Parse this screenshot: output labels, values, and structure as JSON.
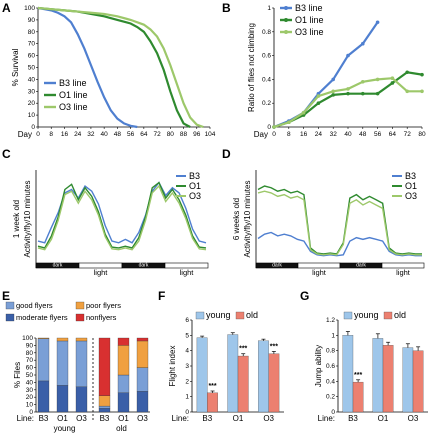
{
  "colors": {
    "B3": "#4f7fd0",
    "O1": "#2f8a2f",
    "O3": "#9dc86a",
    "good": "#7a9fd6",
    "moderate": "#3a5fa8",
    "poor": "#f0a040",
    "non": "#d83030",
    "young": "#9ec6ea",
    "old": "#ec8070"
  },
  "chart_data": [
    {
      "panel": "A",
      "type": "line",
      "ylabel": "% Survival",
      "xlabel": "Day",
      "ylim": [
        0,
        100
      ],
      "yticks": [
        0,
        10,
        20,
        30,
        40,
        50,
        60,
        70,
        80,
        90,
        100
      ],
      "xticks": [
        0,
        8,
        16,
        24,
        32,
        40,
        48,
        56,
        64,
        72,
        80,
        88,
        96,
        104
      ],
      "xlim": [
        0,
        104
      ],
      "legend": "bottom-left",
      "series": [
        {
          "name": "B3 line",
          "color_key": "B3",
          "x": [
            0,
            4,
            8,
            12,
            16,
            20,
            24,
            28,
            32,
            36,
            40,
            44,
            48,
            52,
            56,
            60
          ],
          "y": [
            100,
            99,
            98,
            96,
            93,
            88,
            78,
            66,
            52,
            38,
            25,
            14,
            7,
            3,
            1,
            0
          ]
        },
        {
          "name": "O1 line",
          "color_key": "O1",
          "x": [
            0,
            8,
            16,
            24,
            32,
            40,
            48,
            56,
            60,
            64,
            68,
            72,
            76,
            80,
            84,
            88,
            92
          ],
          "y": [
            100,
            99,
            98,
            97,
            95,
            93,
            90,
            87,
            84,
            80,
            72,
            62,
            48,
            30,
            14,
            3,
            0
          ]
        },
        {
          "name": "O3 line",
          "color_key": "O3",
          "x": [
            0,
            8,
            16,
            24,
            32,
            40,
            48,
            56,
            64,
            68,
            72,
            76,
            80,
            84,
            88,
            92,
            96,
            100
          ],
          "y": [
            100,
            99,
            98,
            97,
            96,
            95,
            93,
            90,
            86,
            82,
            76,
            66,
            52,
            36,
            20,
            8,
            2,
            0
          ]
        }
      ]
    },
    {
      "panel": "B",
      "type": "line",
      "ylabel": "Ratio of flies not climbing",
      "xlabel": "Day",
      "ylim": [
        0,
        1
      ],
      "yticks": [
        0,
        0.2,
        0.4,
        0.6,
        0.8,
        1
      ],
      "xticks": [
        0,
        8,
        16,
        24,
        32,
        40,
        48,
        56,
        64,
        72,
        80
      ],
      "legend": "top-left",
      "series": [
        {
          "name": "B3 line",
          "color_key": "B3",
          "x": [
            0,
            8,
            16,
            24,
            32,
            40,
            48,
            56
          ],
          "y": [
            0,
            0.05,
            0.12,
            0.28,
            0.4,
            0.6,
            0.7,
            0.88
          ]
        },
        {
          "name": "O1 line",
          "color_key": "O1",
          "x": [
            0,
            8,
            16,
            24,
            32,
            40,
            48,
            56,
            64,
            72,
            80
          ],
          "y": [
            0,
            0.04,
            0.1,
            0.2,
            0.27,
            0.28,
            0.28,
            0.28,
            0.37,
            0.46,
            0.44
          ]
        },
        {
          "name": "O3 line",
          "color_key": "O3",
          "x": [
            0,
            8,
            16,
            24,
            32,
            40,
            48,
            56,
            64,
            72,
            80
          ],
          "y": [
            0,
            0.04,
            0.12,
            0.26,
            0.3,
            0.32,
            0.38,
            0.4,
            0.41,
            0.3,
            0.3
          ]
        }
      ]
    },
    {
      "panel": "C",
      "type": "line",
      "ylabel": "Activity/fly/10 minutes",
      "side_label": "1 week old",
      "phases": [
        "dark",
        "light",
        "dark",
        "light"
      ],
      "legend": "top-right",
      "series": [
        {
          "name": "B3",
          "color_key": "B3",
          "profile": [
            0.22,
            0.2,
            0.38,
            0.55,
            0.78,
            0.82,
            0.72,
            0.86,
            0.8,
            0.65,
            0.4,
            0.22,
            0.2,
            0.24,
            0.2,
            0.32,
            0.52,
            0.8,
            0.9,
            0.75,
            0.84,
            0.78,
            0.6,
            0.36,
            0.22,
            0.2
          ]
        },
        {
          "name": "O1",
          "color_key": "O1",
          "profile": [
            0.16,
            0.14,
            0.28,
            0.5,
            0.82,
            0.88,
            0.7,
            0.84,
            0.74,
            0.56,
            0.3,
            0.15,
            0.14,
            0.16,
            0.14,
            0.26,
            0.5,
            0.84,
            0.9,
            0.72,
            0.82,
            0.7,
            0.52,
            0.28,
            0.15,
            0.14
          ]
        },
        {
          "name": "O3",
          "color_key": "O3",
          "profile": [
            0.14,
            0.12,
            0.24,
            0.46,
            0.76,
            0.8,
            0.66,
            0.8,
            0.7,
            0.52,
            0.27,
            0.13,
            0.12,
            0.14,
            0.12,
            0.22,
            0.46,
            0.78,
            0.86,
            0.68,
            0.78,
            0.66,
            0.48,
            0.25,
            0.13,
            0.12
          ]
        }
      ]
    },
    {
      "panel": "D",
      "type": "line",
      "ylabel": "Activity/fly/10 minutes",
      "side_label": "6 weeks old",
      "phases": [
        "dark",
        "light",
        "dark",
        "light"
      ],
      "legend": "top-right",
      "series": [
        {
          "name": "B3",
          "color_key": "B3",
          "profile": [
            0.25,
            0.3,
            0.32,
            0.28,
            0.3,
            0.28,
            0.24,
            0.22,
            0.1,
            0.06,
            0.05,
            0.06,
            0.05,
            0.06,
            0.22,
            0.26,
            0.24,
            0.26,
            0.24,
            0.22,
            0.1,
            0.06,
            0.05,
            0.06,
            0.05,
            0.05
          ]
        },
        {
          "name": "O1",
          "color_key": "O1",
          "profile": [
            0.82,
            0.86,
            0.84,
            0.8,
            0.82,
            0.78,
            0.8,
            0.76,
            0.14,
            0.08,
            0.07,
            0.08,
            0.07,
            0.2,
            0.72,
            0.76,
            0.7,
            0.74,
            0.7,
            0.66,
            0.14,
            0.08,
            0.07,
            0.08,
            0.07,
            0.07
          ]
        },
        {
          "name": "O3",
          "color_key": "O3",
          "profile": [
            0.78,
            0.8,
            0.78,
            0.74,
            0.76,
            0.72,
            0.74,
            0.7,
            0.12,
            0.07,
            0.06,
            0.07,
            0.06,
            0.18,
            0.66,
            0.7,
            0.64,
            0.68,
            0.64,
            0.6,
            0.12,
            0.07,
            0.06,
            0.07,
            0.06,
            0.06
          ]
        }
      ]
    },
    {
      "panel": "E",
      "type": "bar",
      "stacked": true,
      "ylabel": "% Files",
      "xlabel": "Line:",
      "ylim": [
        0,
        100
      ],
      "yticks": [
        0,
        10,
        20,
        30,
        40,
        50,
        60,
        70,
        80,
        90,
        100
      ],
      "categories": [
        "B3",
        "O1",
        "O3",
        "B3",
        "O1",
        "O3"
      ],
      "groups": [
        "young",
        "old"
      ],
      "legend": "top",
      "series": [
        {
          "name": "moderate flyers",
          "color_key": "moderate",
          "values": [
            42,
            36,
            34,
            5,
            26,
            28
          ]
        },
        {
          "name": "good flyers",
          "color_key": "good",
          "values": [
            57,
            60,
            62,
            3,
            24,
            32
          ]
        },
        {
          "name": "poor flyers",
          "color_key": "poor",
          "values": [
            1,
            4,
            4,
            14,
            40,
            36
          ]
        },
        {
          "name": "nonflyers",
          "color_key": "non",
          "values": [
            0,
            0,
            0,
            78,
            10,
            4
          ]
        }
      ]
    },
    {
      "panel": "F",
      "type": "bar",
      "ylabel": "Flight index",
      "xlabel": "Line:",
      "ylim": [
        0,
        6
      ],
      "yticks": [
        0,
        1,
        2,
        3,
        4,
        5,
        6
      ],
      "categories": [
        "B3",
        "O1",
        "O3"
      ],
      "legend": "top",
      "series": [
        {
          "name": "young",
          "color_key": "young",
          "values": [
            4.85,
            5.05,
            4.65
          ],
          "errors": [
            0.1,
            0.12,
            0.1
          ]
        },
        {
          "name": "old",
          "color_key": "old",
          "values": [
            1.25,
            3.65,
            3.8
          ],
          "errors": [
            0.12,
            0.15,
            0.15
          ]
        }
      ],
      "annotations": [
        "***",
        "***",
        "***"
      ]
    },
    {
      "panel": "G",
      "type": "bar",
      "ylabel": "Jump ability",
      "xlabel": "Line:",
      "ylim": [
        0,
        1.2
      ],
      "yticks": [
        0,
        0.2,
        0.4,
        0.6,
        0.8,
        1,
        1.2
      ],
      "categories": [
        "B3",
        "O1",
        "O3"
      ],
      "legend": "top",
      "series": [
        {
          "name": "young",
          "color_key": "young",
          "values": [
            1.0,
            0.96,
            0.84
          ],
          "errors": [
            0.05,
            0.06,
            0.05
          ]
        },
        {
          "name": "old",
          "color_key": "old",
          "values": [
            0.39,
            0.87,
            0.8
          ],
          "errors": [
            0.03,
            0.04,
            0.05
          ]
        }
      ],
      "annotations": [
        "***",
        "",
        ""
      ]
    }
  ],
  "labels": {
    "A": "A",
    "B": "B",
    "C": "C",
    "D": "D",
    "E": "E",
    "F": "F",
    "G": "G",
    "day": "Day",
    "line": "Line:",
    "dark": "dark",
    "light": "light",
    "young": "young",
    "old": "old"
  }
}
